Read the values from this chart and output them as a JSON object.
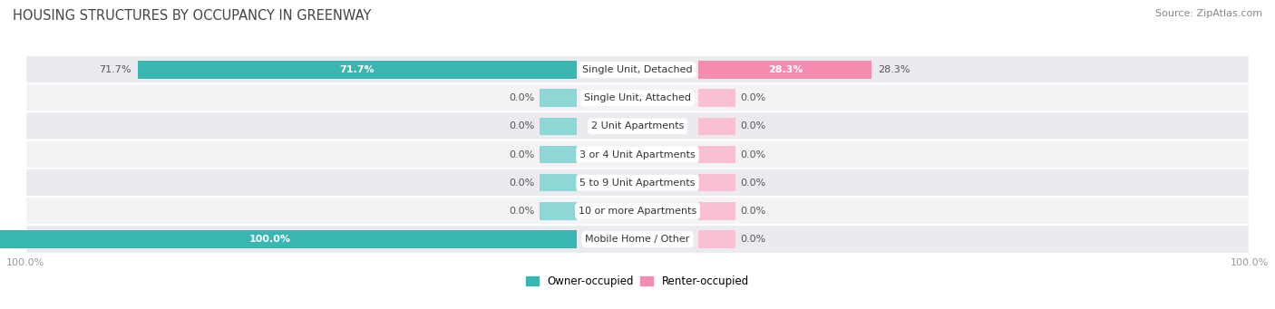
{
  "title": "HOUSING STRUCTURES BY OCCUPANCY IN GREENWAY",
  "source": "Source: ZipAtlas.com",
  "categories": [
    "Single Unit, Detached",
    "Single Unit, Attached",
    "2 Unit Apartments",
    "3 or 4 Unit Apartments",
    "5 to 9 Unit Apartments",
    "10 or more Apartments",
    "Mobile Home / Other"
  ],
  "owner_values": [
    71.7,
    0.0,
    0.0,
    0.0,
    0.0,
    0.0,
    100.0
  ],
  "renter_values": [
    28.3,
    0.0,
    0.0,
    0.0,
    0.0,
    0.0,
    0.0
  ],
  "owner_color": "#39b5b2",
  "renter_color": "#f48cb0",
  "owner_placeholder_color": "#8dd8d6",
  "renter_placeholder_color": "#f9c0d4",
  "row_bg_odd": "#eaeaef",
  "row_bg_even": "#f3f3f6",
  "title_color": "#444444",
  "source_color": "#888888",
  "value_color_dark": "#555555",
  "value_color_white": "#ffffff",
  "max_value": 100.0,
  "placeholder_size": 6.0,
  "figsize": [
    14.06,
    3.41
  ],
  "dpi": 100
}
